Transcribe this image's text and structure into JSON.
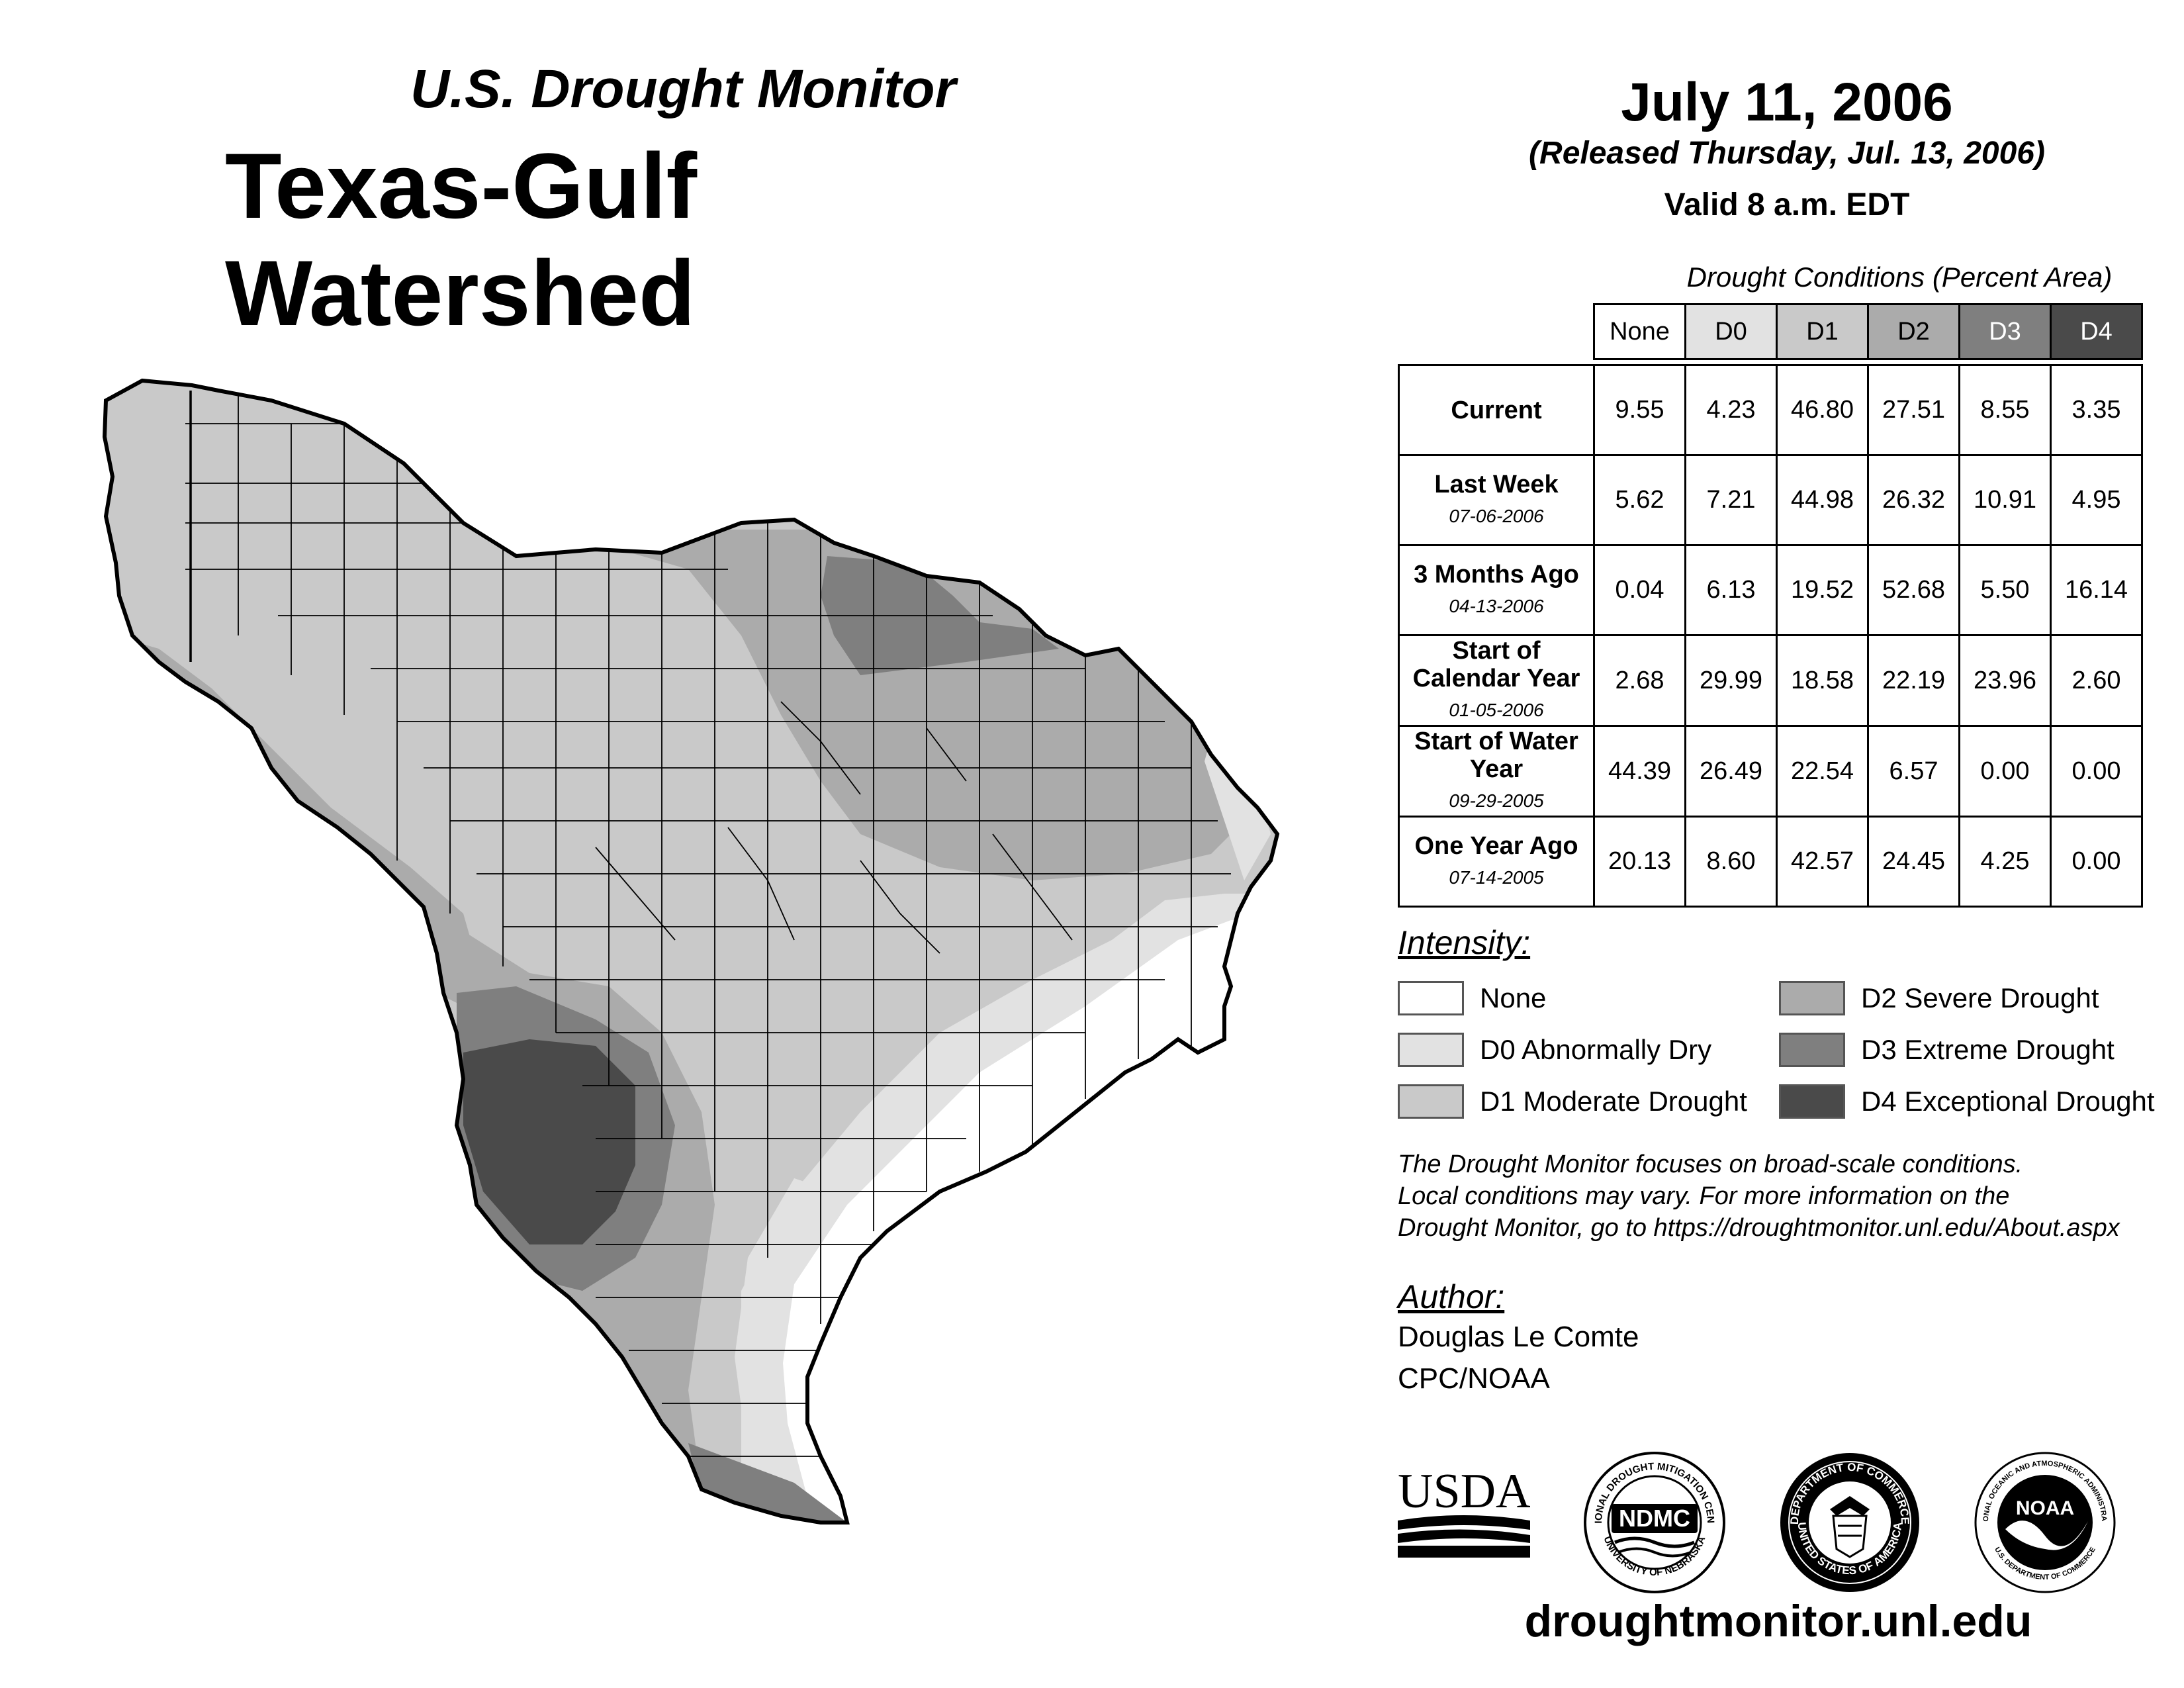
{
  "header": {
    "title_small": "U.S. Drought Monitor",
    "title_big": "Texas-Gulf Watershed",
    "date": "July 11, 2006",
    "released": "(Released Thursday, Jul. 13, 2006)",
    "valid": "Valid 8 a.m. EDT"
  },
  "table": {
    "caption": "Drought Conditions (Percent Area)",
    "columns": [
      "None",
      "D0",
      "D1",
      "D2",
      "D3",
      "D4"
    ],
    "rows": [
      {
        "label": "Current",
        "date": "",
        "values": [
          "9.55",
          "4.23",
          "46.80",
          "27.51",
          "8.55",
          "3.35"
        ]
      },
      {
        "label": "Last Week",
        "date": "07-06-2006",
        "values": [
          "5.62",
          "7.21",
          "44.98",
          "26.32",
          "10.91",
          "4.95"
        ]
      },
      {
        "label": "3 Months Ago",
        "date": "04-13-2006",
        "values": [
          "0.04",
          "6.13",
          "19.52",
          "52.68",
          "5.50",
          "16.14"
        ]
      },
      {
        "label": "Start of Calendar Year",
        "date": "01-05-2006",
        "values": [
          "2.68",
          "29.99",
          "18.58",
          "22.19",
          "23.96",
          "2.60"
        ]
      },
      {
        "label": "Start of Water Year",
        "date": "09-29-2005",
        "values": [
          "44.39",
          "26.49",
          "22.54",
          "6.57",
          "0.00",
          "0.00"
        ]
      },
      {
        "label": "One Year Ago",
        "date": "07-14-2005",
        "values": [
          "20.13",
          "8.60",
          "42.57",
          "24.45",
          "4.25",
          "0.00"
        ]
      }
    ]
  },
  "legend": {
    "heading": "Intensity:",
    "items": [
      {
        "label": "None",
        "color": "#ffffff"
      },
      {
        "label": "D0 Abnormally Dry",
        "color": "#e2e2e2"
      },
      {
        "label": "D1 Moderate Drought",
        "color": "#c9c9c9"
      },
      {
        "label": "D2 Severe Drought",
        "color": "#ababab"
      },
      {
        "label": "D3 Extreme Drought",
        "color": "#7f7f7f"
      },
      {
        "label": "D4 Exceptional Drought",
        "color": "#4a4a4a"
      }
    ]
  },
  "note": {
    "line1": "The Drought Monitor focuses on broad-scale conditions.",
    "line2": "Local conditions may vary. For more information on the",
    "line3": "Drought Monitor, go to https://droughtmonitor.unl.edu/About.aspx"
  },
  "author": {
    "heading": "Author:",
    "name": "Douglas Le Comte",
    "org": "CPC/NOAA"
  },
  "logos": {
    "usda": "USDA",
    "ndmc": "NDMC",
    "ndmc_ring_top": "NATIONAL DROUGHT MITIGATION CENTER",
    "ndmc_ring_bottom": "UNIVERSITY OF NEBRASKA",
    "doc_ring_top": "DEPARTMENT OF COMMERCE",
    "doc_ring_bottom": "UNITED STATES OF AMERICA",
    "noaa": "NOAA",
    "noaa_ring_top": "NATIONAL OCEANIC AND ATMOSPHERIC ADMINISTRATION",
    "noaa_ring_bottom": "U.S. DEPARTMENT OF COMMERCE"
  },
  "website": "droughtmonitor.unl.edu",
  "header_colors": [
    "#ffffff",
    "#e2e2e2",
    "#c9c9c9",
    "#ababab",
    "#7f7f7f",
    "#4a4a4a"
  ]
}
